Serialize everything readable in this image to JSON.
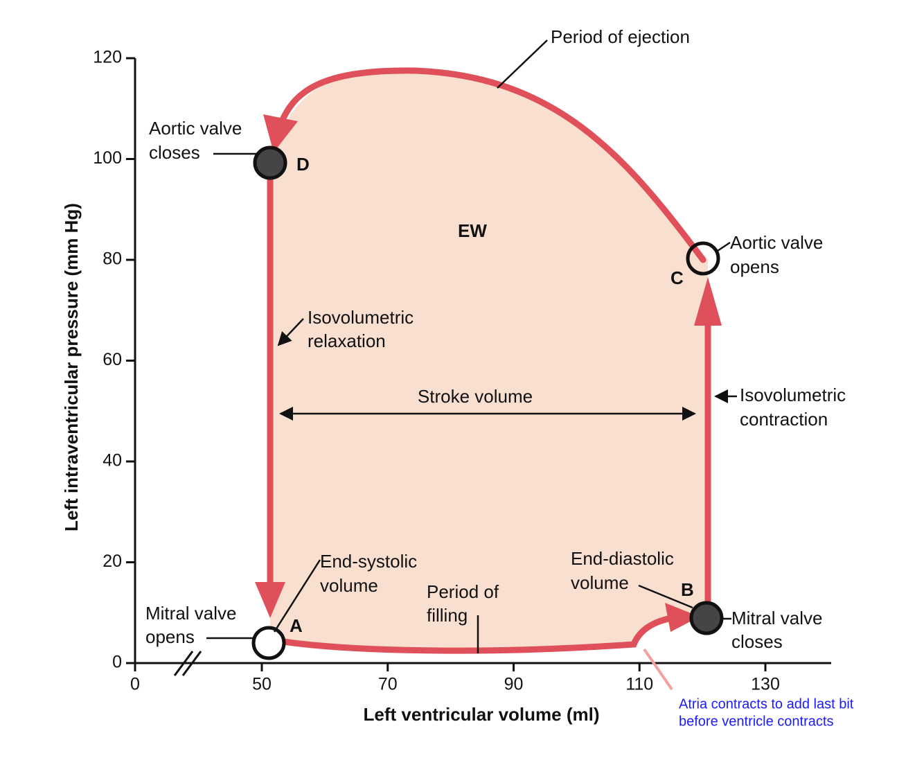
{
  "axes": {
    "x_label": "Left ventricular volume (ml)",
    "y_label": "Left intraventricular pressure (mm Hg)",
    "x_ticks": [
      0,
      50,
      70,
      90,
      110,
      130
    ],
    "y_ticks": [
      0,
      20,
      40,
      60,
      80,
      100,
      120
    ]
  },
  "points": {
    "a": "A",
    "b": "B",
    "c": "C",
    "d": "D"
  },
  "area_label": "EW",
  "annotations": {
    "period_of_ejection": "Period of ejection",
    "aortic_valve_closes": [
      "Aortic valve",
      "closes"
    ],
    "aortic_valve_opens": [
      "Aortic valve",
      "opens"
    ],
    "isovolumetric_relaxation": [
      "Isovolumetric",
      "relaxation"
    ],
    "isovolumetric_contraction": [
      "Isovolumetric",
      "contraction"
    ],
    "stroke_volume": "Stroke volume",
    "end_systolic_volume": [
      "End-systolic",
      "volume"
    ],
    "end_diastolic_volume": [
      "End-diastolic",
      "volume"
    ],
    "period_of_filling": [
      "Period of",
      "filling"
    ],
    "mitral_valve_opens": [
      "Mitral valve",
      "opens"
    ],
    "mitral_valve_closes": [
      "Mitral valve",
      "closes"
    ],
    "atria_note": [
      "Atria contracts to add last bit",
      "before ventricle contracts"
    ]
  }
}
